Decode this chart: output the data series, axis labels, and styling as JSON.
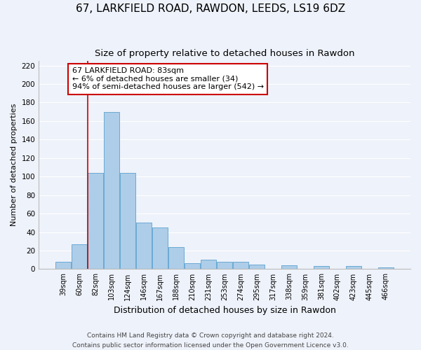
{
  "title": "67, LARKFIELD ROAD, RAWDON, LEEDS, LS19 6DZ",
  "subtitle": "Size of property relative to detached houses in Rawdon",
  "xlabel": "Distribution of detached houses by size in Rawdon",
  "ylabel": "Number of detached properties",
  "bin_labels": [
    "39sqm",
    "60sqm",
    "82sqm",
    "103sqm",
    "124sqm",
    "146sqm",
    "167sqm",
    "188sqm",
    "210sqm",
    "231sqm",
    "253sqm",
    "274sqm",
    "295sqm",
    "317sqm",
    "338sqm",
    "359sqm",
    "381sqm",
    "402sqm",
    "423sqm",
    "445sqm",
    "466sqm"
  ],
  "bar_heights": [
    8,
    27,
    104,
    170,
    104,
    50,
    45,
    24,
    6,
    10,
    8,
    8,
    5,
    0,
    4,
    0,
    3,
    0,
    3,
    0,
    2
  ],
  "bar_color": "#aecde8",
  "bar_edge_color": "#6aaad4",
  "vline_color": "#cc0000",
  "annotation_box_text": "67 LARKFIELD ROAD: 83sqm\n← 6% of detached houses are smaller (34)\n94% of semi-detached houses are larger (542) →",
  "annotation_box_edge_color": "#cc0000",
  "ylim": [
    0,
    225
  ],
  "yticks": [
    0,
    20,
    40,
    60,
    80,
    100,
    120,
    140,
    160,
    180,
    200,
    220
  ],
  "footer_line1": "Contains HM Land Registry data © Crown copyright and database right 2024.",
  "footer_line2": "Contains public sector information licensed under the Open Government Licence v3.0.",
  "background_color": "#eef2fa",
  "grid_color": "#ffffff",
  "title_fontsize": 11,
  "subtitle_fontsize": 9.5,
  "annotation_fontsize": 8,
  "ylabel_fontsize": 8,
  "xlabel_fontsize": 9,
  "footer_fontsize": 6.5
}
